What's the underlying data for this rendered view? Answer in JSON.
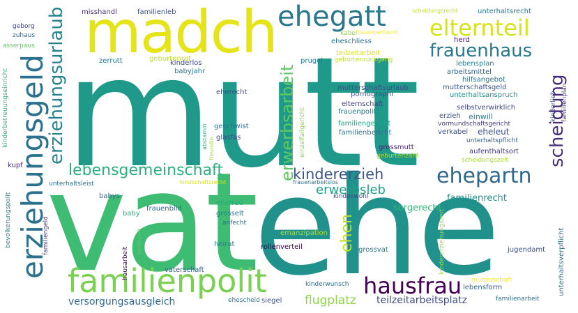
{
  "words": [
    {
      "text": "mutt",
      "color": "#1f9a8a"
    },
    {
      "text": "vat",
      "color": "#3fbc73"
    },
    {
      "text": "ehe",
      "color": "#21918c"
    },
    {
      "text": "madch",
      "color": "#e5e419"
    },
    {
      "text": "ehegatt",
      "color": "#2a788e"
    },
    {
      "text": "elternteil",
      "color": "#d8e219"
    },
    {
      "text": "frauenhaus",
      "color": "#2a788e"
    },
    {
      "text": "familienpolit",
      "color": "#7ad151"
    },
    {
      "text": "hausfrau",
      "color": "#440154"
    },
    {
      "text": "erziehungsgeld",
      "color": "#2c728e"
    },
    {
      "text": "erziehungsurlaub",
      "color": "#26828e"
    },
    {
      "text": "lebensgemeinschaft",
      "color": "#2ab07f"
    },
    {
      "text": "kindererzieh",
      "color": "#3b528b"
    },
    {
      "text": "ehepartn",
      "color": "#31688e"
    },
    {
      "text": "erwerbsleb",
      "color": "#1fa187"
    },
    {
      "text": "erwerbsarbeit",
      "color": "#5ec962"
    },
    {
      "text": "scheidung",
      "color": "#472d7b"
    },
    {
      "text": "ehen",
      "color": "#bddf26"
    },
    {
      "text": "versorgungsausgleich",
      "color": "#31688e"
    },
    {
      "text": "flugplatz",
      "color": "#8fd744"
    },
    {
      "text": "teilzeitarbeitsplatz",
      "color": "#3e4989"
    },
    {
      "text": "sorgerecht",
      "color": "#35b779"
    },
    {
      "text": "familienrecht",
      "color": "#21918c"
    },
    {
      "text": "missHandl",
      "display": "misshandl",
      "color": "#472d7b"
    },
    {
      "text": "familienleb",
      "color": "#3b528b"
    },
    {
      "text": "unterhaltsrecht",
      "color": "#2a788e"
    },
    {
      "text": "scheidungsrecht",
      "color": "#bddf26"
    },
    {
      "text": "kabel",
      "color": "#8fd744"
    },
    {
      "text": "frauenverband",
      "color": "#fde725"
    },
    {
      "text": "eheschliess",
      "color": "#2c728e"
    },
    {
      "text": "herd",
      "color": "#481f70"
    },
    {
      "text": "lebensplan",
      "color": "#26828e"
    },
    {
      "text": "arbeitsmittel",
      "color": "#31688e"
    },
    {
      "text": "hilfsangebot",
      "color": "#2c728e"
    },
    {
      "text": "mutterschaftsgeld",
      "color": "#3b528b"
    },
    {
      "text": "unterhaltsanspruch",
      "color": "#21918c"
    },
    {
      "text": "selbstverwirklich",
      "color": "#3e4989"
    },
    {
      "text": "erzieh",
      "color": "#3b528b"
    },
    {
      "text": "einwill",
      "color": "#287c8e"
    },
    {
      "text": "vormundschaftsgericht",
      "color": "#443983"
    },
    {
      "text": "verkabel",
      "color": "#3b528b"
    },
    {
      "text": "eheleut",
      "color": "#3b528b"
    },
    {
      "text": "unterhaltspflicht",
      "color": "#355f8d"
    },
    {
      "text": "aufenthaltsort",
      "color": "#443983"
    },
    {
      "text": "scheidungszeit",
      "color": "#addc30"
    },
    {
      "text": "geborg",
      "color": "#3e4989"
    },
    {
      "text": "zuhaus",
      "color": "#31688e"
    },
    {
      "text": "asserpaus",
      "color": "#5ec962"
    },
    {
      "text": "kinderbetreuungseinricht",
      "color": "#2ab07f"
    },
    {
      "text": "geburtenrat",
      "color": "#bddf26"
    },
    {
      "text": "zerrutt",
      "color": "#2a788e"
    },
    {
      "text": "kinderlos",
      "color": "#3e4989"
    },
    {
      "text": "babyjahr",
      "color": "#2a788e"
    },
    {
      "text": "prugel",
      "color": "#287c8e"
    },
    {
      "text": "teilzeitarbeit",
      "color": "#d8e219"
    },
    {
      "text": "geburtenruckgang",
      "color": "#bddf26"
    },
    {
      "text": "eherecht",
      "color": "#3e4989"
    },
    {
      "text": "mutterschaftsurlaub",
      "color": "#3e4989"
    },
    {
      "text": "pornographi",
      "color": "#3b528b"
    },
    {
      "text": "elternschaft",
      "color": "#433e85"
    },
    {
      "text": "frauenpolit",
      "color": "#287c8e"
    },
    {
      "text": "familiengericht",
      "color": "#22a884"
    },
    {
      "text": "familienbericht",
      "color": "#2c728e"
    },
    {
      "text": "geschwist",
      "color": "#2c728e"
    },
    {
      "text": "glasfas",
      "color": "#3e4989"
    },
    {
      "text": "grossmutt",
      "color": "#481f70"
    },
    {
      "text": "geburtenzahl",
      "color": "#addc30"
    },
    {
      "text": "einzelfallgericht",
      "color": "#84d44b"
    },
    {
      "text": "abstamm",
      "color": "#2ab07f"
    },
    {
      "text": "kindschaftsrecht",
      "color": "#d8e219"
    },
    {
      "text": "frauenarbeitslos",
      "color": "#2c728e"
    },
    {
      "text": "kindeswohl",
      "color": "#3e4989"
    },
    {
      "text": "ehefrau",
      "color": "#22a884"
    },
    {
      "text": "grosselt",
      "color": "#2a788e"
    },
    {
      "text": "anfecht",
      "color": "#31688e"
    },
    {
      "text": "emanzipation",
      "color": "#addc30"
    },
    {
      "text": "rollenverteil",
      "color": "#440154"
    },
    {
      "text": "grossvat",
      "color": "#2a788e"
    },
    {
      "text": "heirat",
      "color": "#287c8e"
    },
    {
      "text": "baby",
      "color": "#2ab07f"
    },
    {
      "text": "frauenbild",
      "color": "#31688e"
    },
    {
      "text": "babys",
      "color": "#2c728e"
    },
    {
      "text": "kupf",
      "color": "#482878"
    },
    {
      "text": "unterhaltsleist",
      "color": "#2c728e"
    },
    {
      "text": "bevolkerungspolit",
      "color": "#26828e"
    },
    {
      "text": "familiengeld",
      "color": "#433e85"
    },
    {
      "text": "hausarbeit",
      "color": "#440154"
    },
    {
      "text": "partnerin",
      "color": "#5ec962"
    },
    {
      "text": "vaterschaft",
      "color": "#355f8d"
    },
    {
      "text": "kinderwunsch",
      "color": "#2c728e"
    },
    {
      "text": "ehescheid",
      "color": "#2a788e"
    },
    {
      "text": "siegel",
      "color": "#3b528b"
    },
    {
      "text": "lebensform",
      "color": "#355f8d"
    },
    {
      "text": "familienarbeit",
      "color": "#2c728e"
    },
    {
      "text": "jugendamt",
      "color": "#3b528b"
    },
    {
      "text": "kindererziehungszeit",
      "color": "#a2da37"
    },
    {
      "text": "mutterschaft",
      "color": "#fde725"
    },
    {
      "text": "unterhaltsverpflicht",
      "color": "#2c728e"
    },
    {
      "text": "familienplan",
      "color": "#433e85"
    },
    {
      "text": "freundin",
      "color": "#a2da37"
    },
    {
      "text": "kinderlieb",
      "color": "#3b528b"
    }
  ]
}
